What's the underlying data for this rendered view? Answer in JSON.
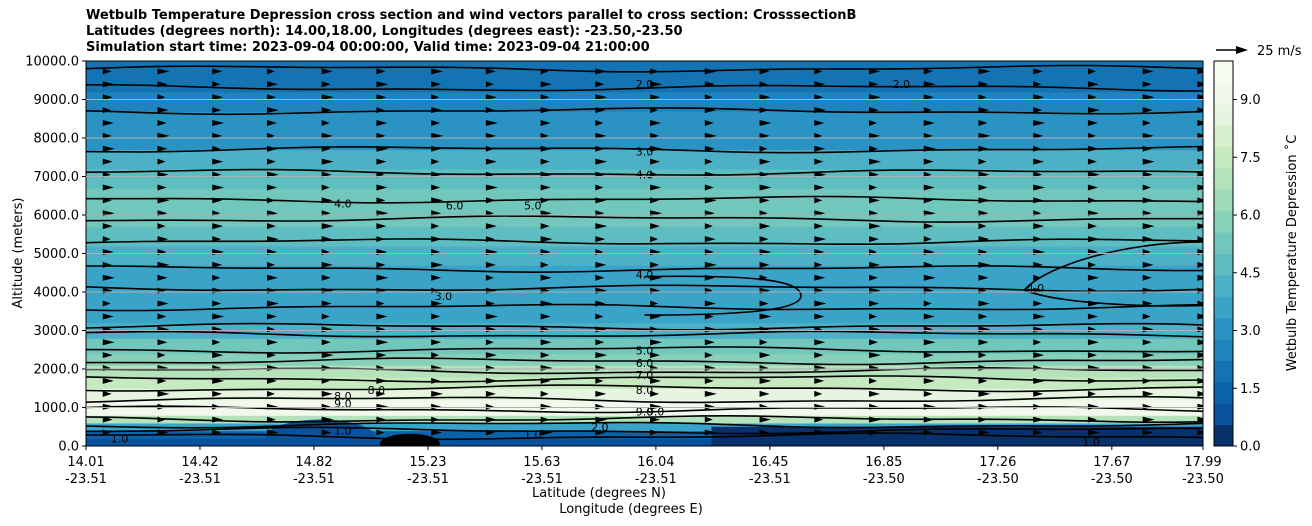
{
  "title_lines": [
    "Wetbulb Temperature Depression cross section and wind vectors parallel to cross section: CrosssectionB",
    "Latitudes (degrees north): 14.00,18.00, Longitudes (degrees east): -23.50,-23.50",
    "Simulation start time: 2023-09-04 00:00:00, Valid time: 2023-09-04 21:00:00"
  ],
  "chart_data": {
    "type": "contourf",
    "ylabel": "Altitude (meters)",
    "xlabel_lat": "Latitude (degrees N)",
    "xlabel_lon": "Longitude (degrees E)",
    "ylim": [
      0,
      10000
    ],
    "yticks": [
      "0.0",
      "1000.0",
      "2000.0",
      "3000.0",
      "4000.0",
      "5000.0",
      "6000.0",
      "7000.0",
      "8000.0",
      "9000.0",
      "10000.0"
    ],
    "grid": "horizontal",
    "xticks": [
      {
        "lat": "14.01",
        "lon": "-23.51"
      },
      {
        "lat": "14.42",
        "lon": "-23.51"
      },
      {
        "lat": "14.82",
        "lon": "-23.51"
      },
      {
        "lat": "15.23",
        "lon": "-23.51"
      },
      {
        "lat": "15.63",
        "lon": "-23.51"
      },
      {
        "lat": "16.04",
        "lon": "-23.51"
      },
      {
        "lat": "16.45",
        "lon": "-23.51"
      },
      {
        "lat": "16.85",
        "lon": "-23.50"
      },
      {
        "lat": "17.26",
        "lon": "-23.50"
      },
      {
        "lat": "17.67",
        "lon": "-23.50"
      },
      {
        "lat": "17.99",
        "lon": "-23.50"
      }
    ],
    "colorbar": {
      "label": "Wetbulb Temperature Depression $^\\circ$C",
      "label_display": "Wetbulb Temperature Depression ˚C",
      "ticks": [
        "0.0",
        "1.5",
        "3.0",
        "4.5",
        "6.0",
        "7.5",
        "9.0"
      ],
      "range": [
        0,
        10
      ],
      "colors": [
        "#08306b",
        "#08519c",
        "#0b62a9",
        "#1474b3",
        "#2083bc",
        "#2b93c4",
        "#3aa3c8",
        "#4cb1c6",
        "#5dbdc1",
        "#72c7bd",
        "#88d0ba",
        "#9fdab8",
        "#b4e2ba",
        "#c7e9c0",
        "#d7efcf",
        "#e5f5df",
        "#f0f9ec",
        "#f7fcf0"
      ]
    },
    "wind_reference": {
      "label": "25 m/s",
      "value": 25
    },
    "contour_labels": [
      {
        "text": "2.0",
        "x": 0.5,
        "y": 9400
      },
      {
        "text": "2.0",
        "x": 0.73,
        "y": 9400
      },
      {
        "text": "3.0",
        "x": 0.5,
        "y": 7650
      },
      {
        "text": "4.0",
        "x": 0.5,
        "y": 7050
      },
      {
        "text": "4.0",
        "x": 0.23,
        "y": 6300
      },
      {
        "text": "6.0",
        "x": 0.33,
        "y": 6250
      },
      {
        "text": "5.0",
        "x": 0.4,
        "y": 6250
      },
      {
        "text": "4.0",
        "x": 0.5,
        "y": 4450
      },
      {
        "text": "4.0",
        "x": 0.85,
        "y": 4100
      },
      {
        "text": "3.0",
        "x": 0.32,
        "y": 3900
      },
      {
        "text": "5.0",
        "x": 0.5,
        "y": 2480
      },
      {
        "text": "6.0",
        "x": 0.5,
        "y": 2150
      },
      {
        "text": "7.0",
        "x": 0.5,
        "y": 1850
      },
      {
        "text": "8.0",
        "x": 0.5,
        "y": 1450
      },
      {
        "text": "8.0",
        "x": 0.26,
        "y": 1450
      },
      {
        "text": "9.0",
        "x": 0.5,
        "y": 900
      },
      {
        "text": "9.0",
        "x": 0.51,
        "y": 900
      },
      {
        "text": "9.0",
        "x": 0.23,
        "y": 1100
      },
      {
        "text": "8.0",
        "x": 0.23,
        "y": 1300
      },
      {
        "text": "1.0",
        "x": 0.03,
        "y": 200
      },
      {
        "text": "1.0",
        "x": 0.23,
        "y": 400
      },
      {
        "text": "1.0",
        "x": 0.4,
        "y": 300
      },
      {
        "text": "2.0",
        "x": 0.46,
        "y": 500
      },
      {
        "text": "1.0",
        "x": 0.9,
        "y": 100
      }
    ]
  }
}
